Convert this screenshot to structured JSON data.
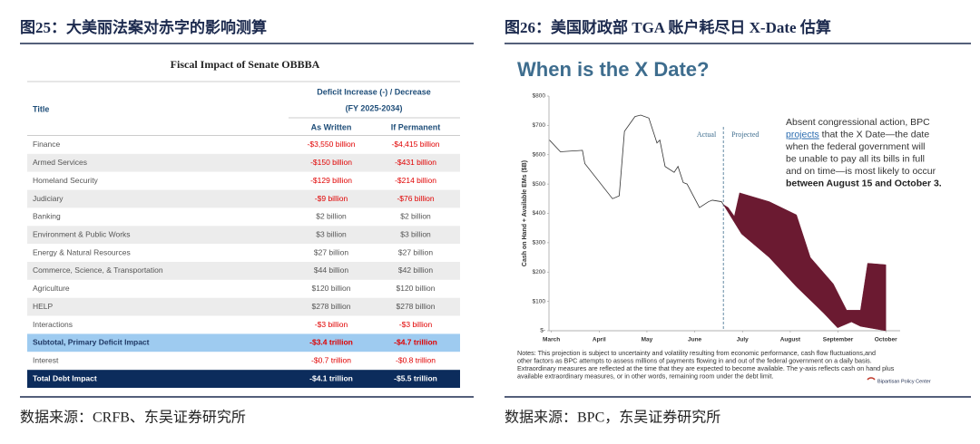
{
  "left": {
    "heading": "图25：大美丽法案对赤字的影响测算",
    "table": {
      "title": "Fiscal Impact of  Senate OBBBA",
      "col_title": "Title",
      "group_header": [
        "Deficit Increase (-) / Decrease",
        "(FY 2025-2034)"
      ],
      "columns": [
        "As Written",
        "If Permanent"
      ],
      "rows": [
        [
          "Finance",
          "-$3,550 billion",
          "-$4,415 billion"
        ],
        [
          "Armed Services",
          "-$150 billion",
          "-$431 billion"
        ],
        [
          "Homeland Security",
          "-$129 billion",
          "-$214 billion"
        ],
        [
          "Judiciary",
          "-$9 billion",
          "-$76 billion"
        ],
        [
          "Banking",
          "$2 billion",
          "$2 billion"
        ],
        [
          "Environment & Public Works",
          "$3 billion",
          "$3 billion"
        ],
        [
          "Energy & Natural Resources",
          "$27 billion",
          "$27 billion"
        ],
        [
          "Commerce, Science, & Transportation",
          "$44 billion",
          "$42 billion"
        ],
        [
          "Agriculture",
          "$120 billion",
          "$120 billion"
        ],
        [
          "HELP",
          "$278 billion",
          "$278 billion"
        ],
        [
          "Interactions",
          "-$3 billion",
          "-$3 billion"
        ],
        [
          "Subtotal, Primary Deficit Impact",
          "-$3.4 trillion",
          "-$4.7 trillion"
        ],
        [
          "Interest",
          "-$0.7 trillion",
          "-$0.8 trillion"
        ],
        [
          "Total Debt Impact",
          "-$4.1 trillion",
          "-$5.5 trillion"
        ]
      ]
    },
    "source": "数据来源：CRFB、东吴证券研究所"
  },
  "right": {
    "heading": "图26：美国财政部 TGA 账户耗尽日 X-Date 估算",
    "source": "数据来源：BPC，东吴证券研究所",
    "logo": "Bipartisan Policy Center"
  },
  "chart_data": {
    "type": "line",
    "title": "When is the X Date?",
    "y_label": "Cash on Hand + Available EMs ($B)",
    "actual_label": "Actual",
    "projected_label": "Projected",
    "annotation": {
      "line1": "Absent congressional action, BPC",
      "link": "projects",
      "line2": " that the X Date—the date",
      "line3": "when the federal government will",
      "line4": "be unable to pay all its bills in full",
      "line5": "and on time—is most likely to occur",
      "line6": "between August 15 and October 3."
    },
    "notes": [
      "Notes: This projection is subject to uncertainty and volatility resulting from economic performance, cash flow fluctuations,and",
      "other factors as BPC attempts to assess millions of payments flowing in and out of the federal government on a daily basis.",
      "Extraordinary measures are reflected at the time that they are expected to become available. The y-axis reflects cash on hand plus",
      "available extraordinary measures, or in other words, remaining room under the debt limit."
    ],
    "xlim": [
      2.95,
      10.3
    ],
    "xticks": [
      {
        "value": 3,
        "label": "March"
      },
      {
        "value": 4,
        "label": "April"
      },
      {
        "value": 5,
        "label": "May"
      },
      {
        "value": 6,
        "label": "June"
      },
      {
        "value": 7,
        "label": "July"
      },
      {
        "value": 8,
        "label": "August"
      },
      {
        "value": 9,
        "label": "September"
      },
      {
        "value": 10,
        "label": "October"
      }
    ],
    "ylim": [
      0,
      800
    ],
    "yticks": [
      {
        "value": 0,
        "label": "$-"
      },
      {
        "value": 100,
        "label": "$100"
      },
      {
        "value": 200,
        "label": "$200"
      },
      {
        "value": 300,
        "label": "$300"
      },
      {
        "value": 400,
        "label": "$400"
      },
      {
        "value": 500,
        "label": "$500"
      },
      {
        "value": 600,
        "label": "$600"
      },
      {
        "value": 700,
        "label": "$700"
      },
      {
        "value": 800,
        "label": "$800"
      }
    ],
    "split_x": 6.6,
    "series": [
      {
        "name": "Actual",
        "color": "#333333",
        "x": [
          2.96,
          3.19,
          3.65,
          3.7,
          4.28,
          4.42,
          4.53,
          4.75,
          4.87,
          5.04,
          5.21,
          5.27,
          5.38,
          5.57,
          5.65,
          5.76,
          5.84,
          6.1,
          6.29,
          6.37,
          6.56,
          6.6
        ],
        "values": [
          650,
          610,
          615,
          570,
          450,
          460,
          680,
          730,
          735,
          725,
          640,
          650,
          560,
          540,
          560,
          505,
          500,
          420,
          440,
          445,
          440,
          430
        ]
      },
      {
        "name": "Projected high",
        "color": "#6b1a31",
        "x": [
          6.6,
          6.7,
          6.83,
          6.94,
          7.56,
          8.13,
          8.42,
          8.9,
          9.18,
          9.47,
          9.62,
          10.0,
          10.0
        ],
        "values": [
          430,
          420,
          390,
          470,
          440,
          395,
          250,
          160,
          70,
          70,
          230,
          225,
          0
        ]
      },
      {
        "name": "Projected low",
        "color": "#6b1a31",
        "x": [
          6.6,
          6.98,
          7.56,
          8.13,
          8.7,
          8.99,
          9.28,
          9.47,
          10.0
        ],
        "values": [
          430,
          330,
          250,
          150,
          60,
          10,
          30,
          15,
          0
        ]
      }
    ]
  }
}
